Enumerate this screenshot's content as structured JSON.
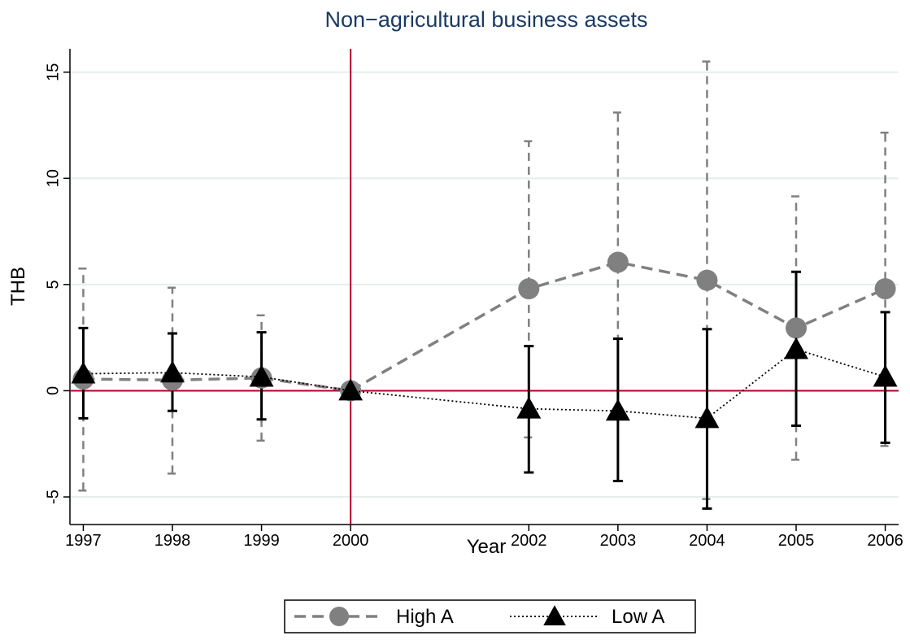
{
  "chart_data": {
    "type": "errorbar-line",
    "title": "Non−agricultural business assets",
    "xlabel": "Year",
    "ylabel": "THB",
    "x": [
      1997,
      1998,
      1999,
      2000,
      2002,
      2003,
      2004,
      2005,
      2006
    ],
    "xlim": [
      1996.85,
      2006.15
    ],
    "xticks": [
      1997,
      1998,
      1999,
      2000,
      2002,
      2003,
      2004,
      2005,
      2006
    ],
    "ylim": [
      -6.3,
      16.1
    ],
    "yticks": [
      -5,
      0,
      5,
      10,
      15
    ],
    "grid": true,
    "grid_color": "#e6eeee",
    "reference_color": "#b5002e",
    "vline": 2000,
    "hline": 0,
    "legend": "bottom",
    "series": [
      {
        "name": "High A",
        "color": "#808080",
        "line_style": "dashed",
        "marker": "circle",
        "values": [
          0.55,
          0.5,
          0.6,
          0,
          4.8,
          6.05,
          5.2,
          2.95,
          4.8
        ],
        "lower": [
          -4.7,
          -3.9,
          -2.35,
          null,
          -2.2,
          -1.0,
          -5.1,
          -3.25,
          -2.6
        ],
        "upper": [
          5.75,
          4.85,
          3.55,
          null,
          11.75,
          13.1,
          15.5,
          9.15,
          12.15
        ]
      },
      {
        "name": "Low A",
        "color": "#000000",
        "line_style": "dotted",
        "marker": "triangle",
        "values": [
          0.8,
          0.85,
          0.65,
          0,
          -0.85,
          -0.95,
          -1.3,
          1.95,
          0.65
        ],
        "lower": [
          -1.3,
          -0.95,
          -1.35,
          null,
          -3.85,
          -4.25,
          -5.55,
          -1.65,
          -2.45
        ],
        "upper": [
          2.95,
          2.7,
          2.75,
          null,
          2.1,
          2.45,
          2.9,
          5.6,
          3.7
        ]
      }
    ]
  }
}
